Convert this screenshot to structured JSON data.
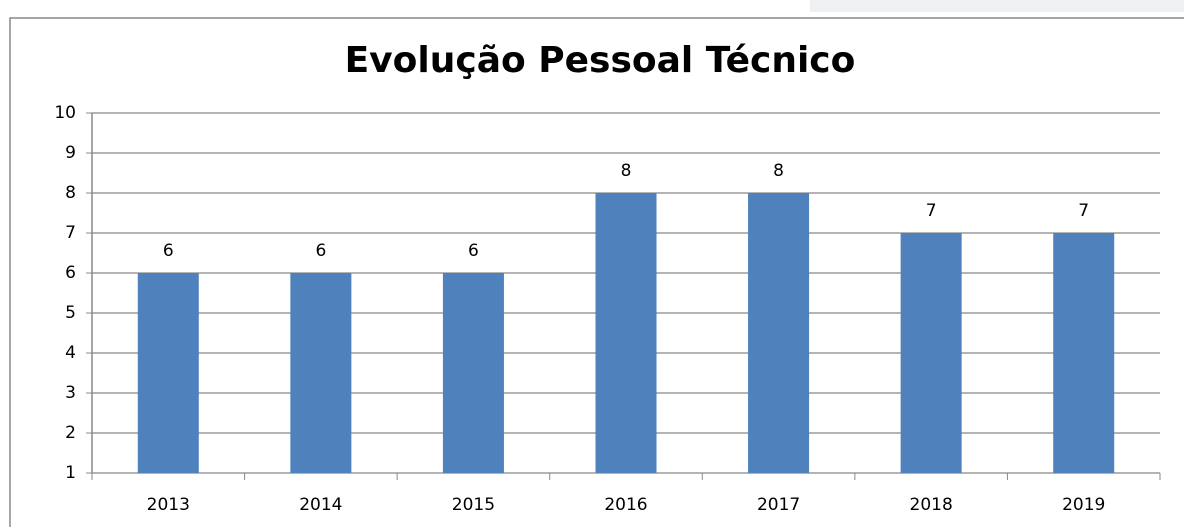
{
  "chart_data": {
    "type": "bar",
    "title": "Evolução Pessoal Técnico",
    "categories": [
      "2013",
      "2014",
      "2015",
      "2016",
      "2017",
      "2018",
      "2019"
    ],
    "values": [
      6,
      6,
      6,
      8,
      8,
      7,
      7
    ],
    "color": "#4f81bd",
    "ylim": [
      1,
      10
    ],
    "yticks": [
      1,
      2,
      3,
      4,
      5,
      6,
      7,
      8,
      9,
      10
    ],
    "grid": true
  }
}
